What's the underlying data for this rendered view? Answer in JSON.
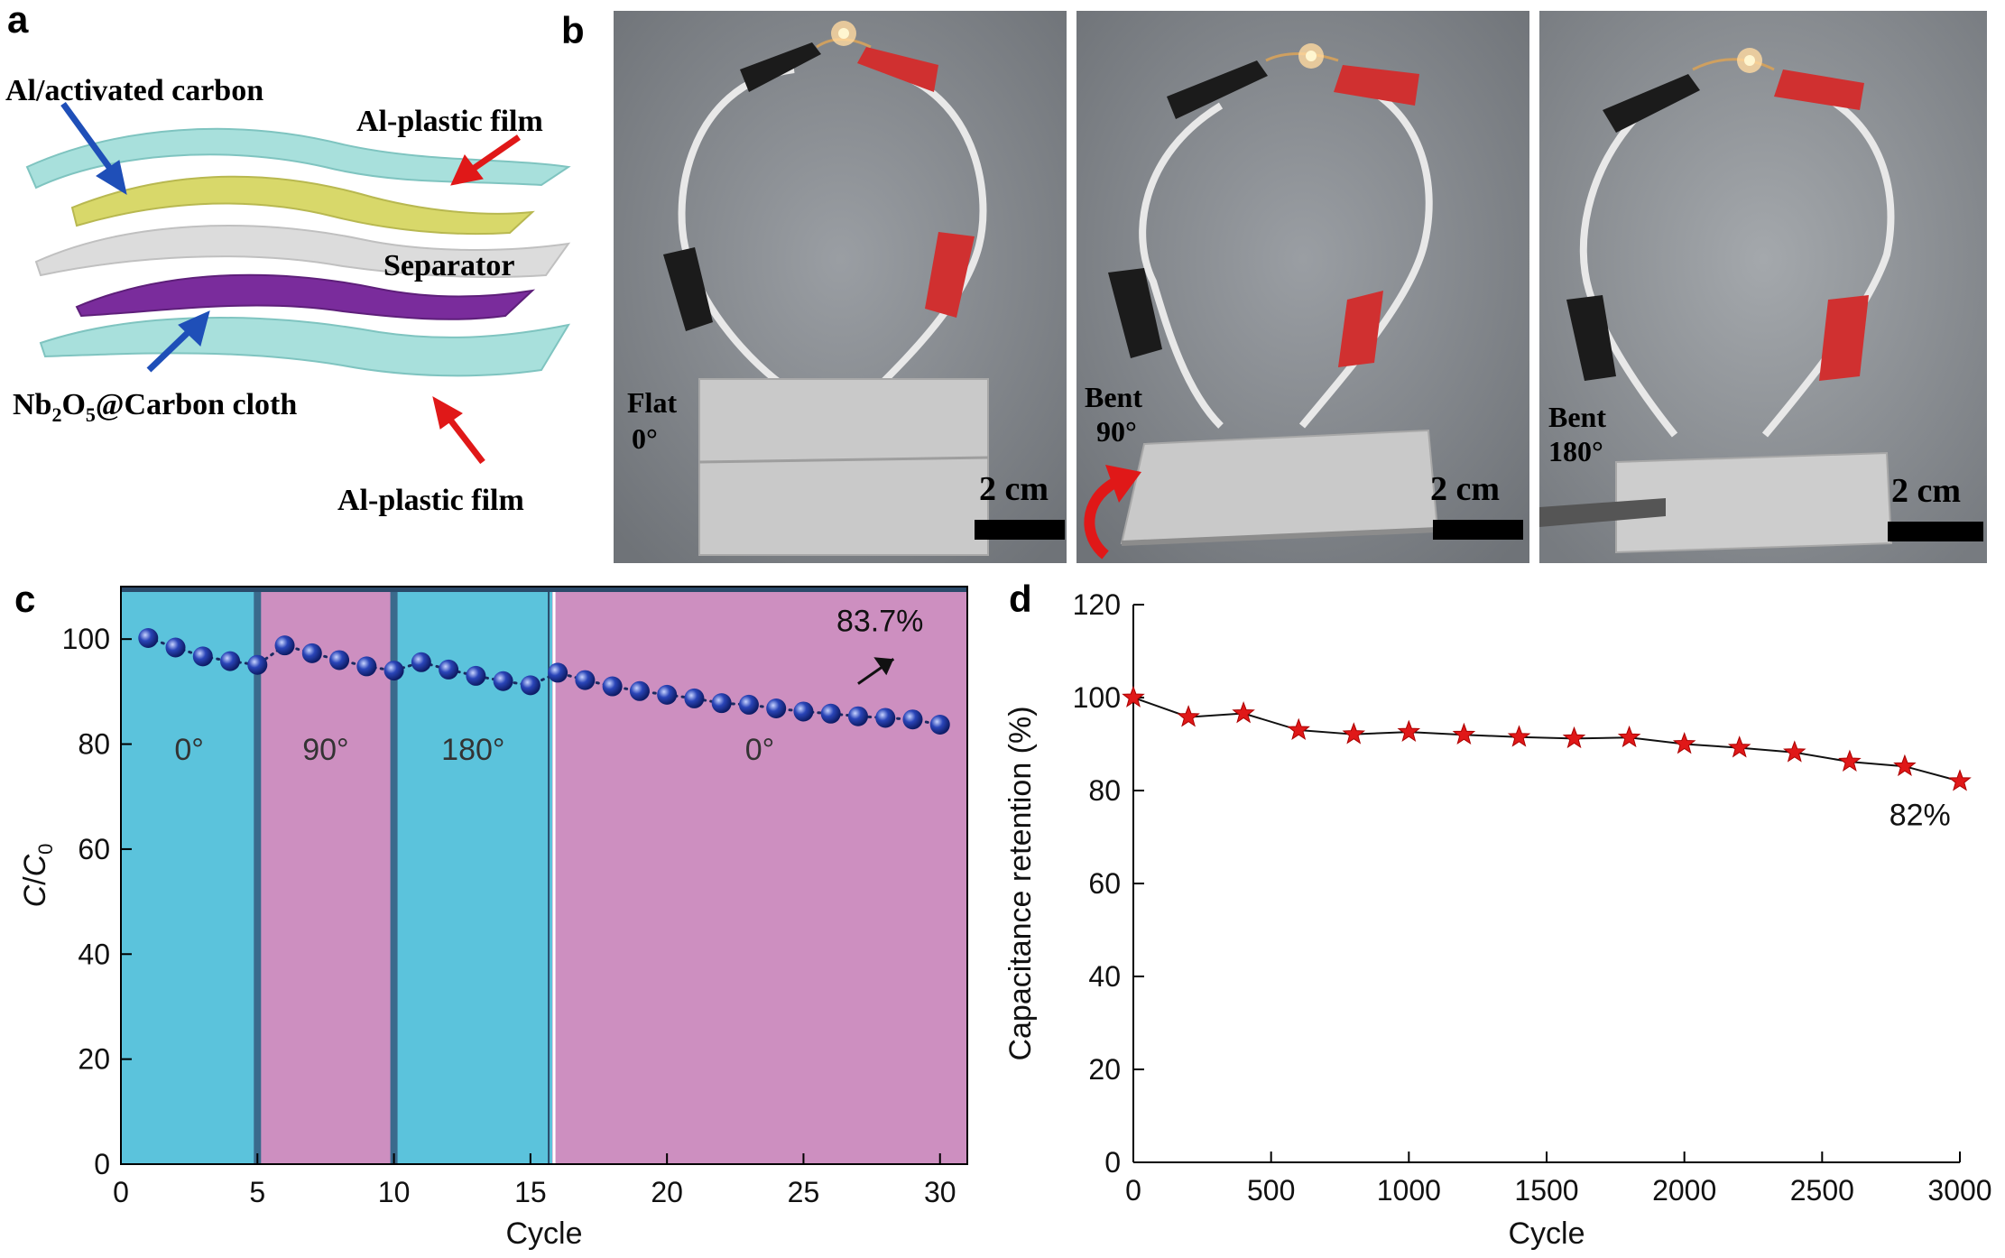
{
  "panels": {
    "a": "a",
    "b": "b",
    "c": "c",
    "d": "d"
  },
  "schematic": {
    "label_al_carbon": "Al/activated carbon",
    "label_film_top": "Al-plastic film",
    "label_separator": "Separator",
    "label_nb_pre": "Nb",
    "label_nb_sub1": "2",
    "label_nb_mid": "O",
    "label_nb_sub2": "5",
    "label_nb_post": "@Carbon cloth",
    "label_film_bottom": "Al-plastic film",
    "colors": {
      "film": "#a8e0dc",
      "carbon": "#d8d86a",
      "separator": "#dcdcdc",
      "cloth": "#7a2c9c",
      "arrow_blue": "#1f4fb8",
      "arrow_red": "#e01818"
    }
  },
  "photos": [
    {
      "state_line1": "Flat",
      "state_line2": "0°",
      "scale": "2 cm"
    },
    {
      "state_line1": "Bent",
      "state_line2": "90°",
      "scale": "2 cm"
    },
    {
      "state_line1": "Bent",
      "state_line2": "180°",
      "scale": "2 cm"
    }
  ],
  "chart_data": [
    {
      "type": "scatter",
      "xlabel": "Cycle",
      "ylabel_italic_main": "C",
      "ylabel_slash": "/",
      "ylabel_italic_sub": "C",
      "ylabel_sub_index": "0",
      "xlim": [
        0,
        31
      ],
      "ylim": [
        0,
        110
      ],
      "xticks": [
        0,
        5,
        10,
        15,
        20,
        25,
        30
      ],
      "yticks": [
        0,
        20,
        40,
        60,
        80,
        100
      ],
      "regions": [
        {
          "x0": 0,
          "x1": 5,
          "label": "0°",
          "color": "#5bc3dc"
        },
        {
          "x0": 5,
          "x1": 10,
          "label": "90°",
          "color": "#cd8fc0"
        },
        {
          "x0": 10,
          "x1": 15.8,
          "label": "180°",
          "color": "#5bc3dc"
        },
        {
          "x0": 15.8,
          "x1": 31,
          "label": "0°",
          "color": "#cd8fc0"
        }
      ],
      "annotation": "83.7%",
      "marker_color": "#2a45b8",
      "x": [
        1,
        2,
        3,
        4,
        5,
        6,
        7,
        8,
        9,
        10,
        11,
        12,
        13,
        14,
        15,
        16,
        17,
        18,
        19,
        20,
        21,
        22,
        23,
        24,
        25,
        26,
        27,
        28,
        29,
        30
      ],
      "values": [
        100.2,
        98.4,
        96.7,
        95.8,
        95.1,
        98.8,
        97.3,
        96.0,
        94.8,
        94.0,
        95.6,
        94.2,
        93.0,
        92.0,
        91.2,
        93.6,
        92.2,
        91.0,
        90.1,
        89.4,
        88.7,
        87.8,
        87.5,
        86.8,
        86.2,
        85.8,
        85.3,
        85.0,
        84.7,
        83.7
      ]
    },
    {
      "type": "line",
      "xlabel": "Cycle",
      "ylabel": "Capacitance retention (%)",
      "xlim": [
        0,
        3000
      ],
      "ylim": [
        0,
        120
      ],
      "xticks": [
        0,
        500,
        1000,
        1500,
        2000,
        2500,
        3000
      ],
      "yticks": [
        0,
        20,
        40,
        60,
        80,
        100,
        120
      ],
      "annotation": "82%",
      "marker_color": "#e01818",
      "x": [
        0,
        200,
        400,
        600,
        800,
        1000,
        1200,
        1400,
        1600,
        1800,
        2000,
        2200,
        2400,
        2600,
        2800,
        3000
      ],
      "values": [
        100,
        95.8,
        96.6,
        93.0,
        92.1,
        92.6,
        92.0,
        91.5,
        91.2,
        91.4,
        90.0,
        89.2,
        88.2,
        86.2,
        85.2,
        82.0
      ]
    }
  ]
}
